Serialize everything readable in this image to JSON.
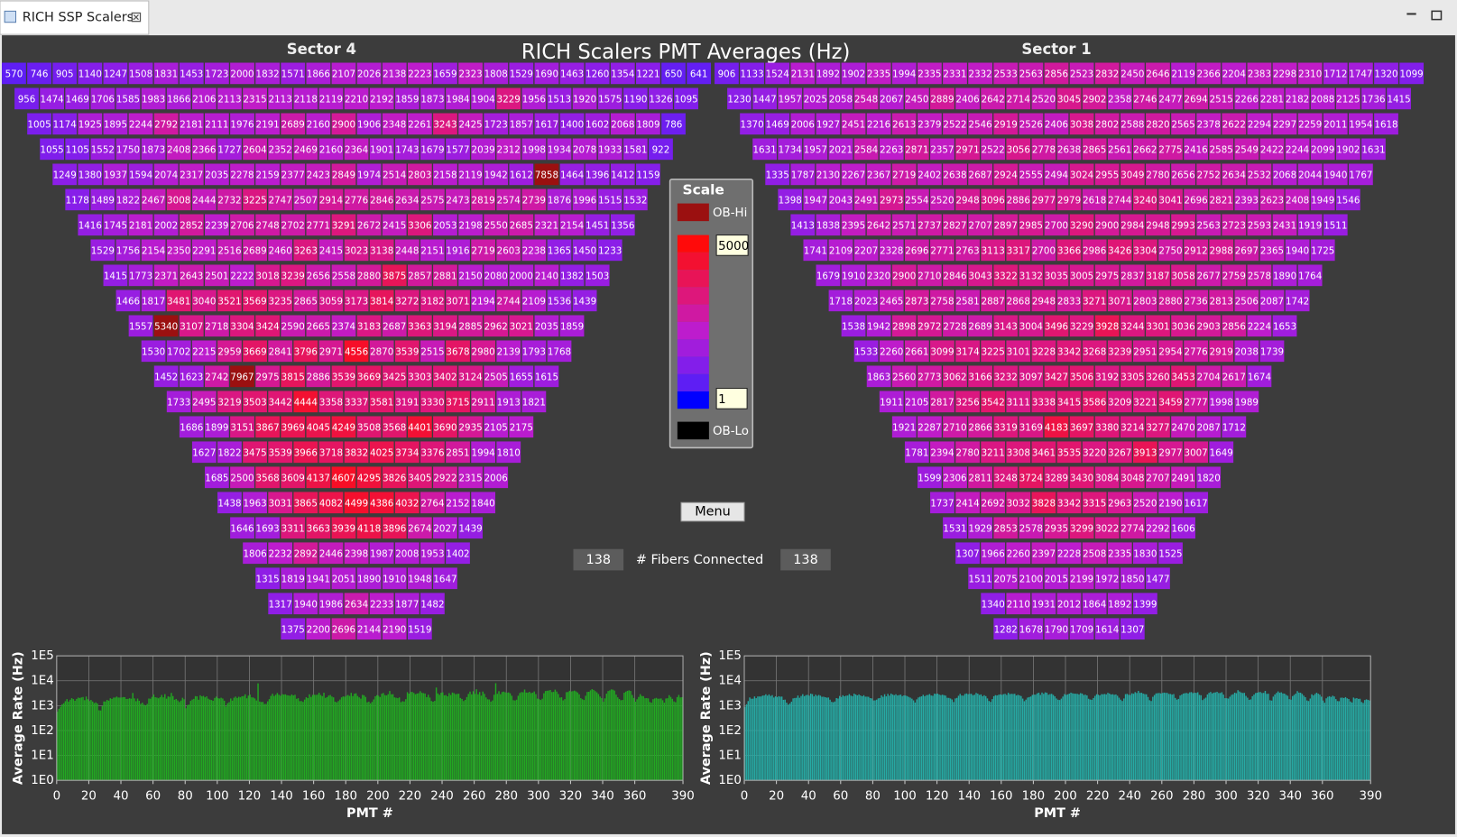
{
  "tab": {
    "title": "RICH SSP Scalers"
  },
  "title": "RICH Scalers PMT Averages (Hz)",
  "sectors": [
    {
      "name": "Sector 4",
      "rows": [
        [
          570,
          746,
          905,
          1140,
          1247,
          1508,
          1831,
          1453,
          1723,
          2000,
          1832,
          1571,
          1866,
          2107,
          2026,
          2138,
          2223,
          1659,
          2323,
          1808,
          1529,
          1690,
          1463,
          1260,
          1354,
          1221,
          650,
          641
        ],
        [
          956,
          1474,
          1469,
          1706,
          1585,
          1983,
          1866,
          2106,
          2113,
          2315,
          2113,
          2118,
          2119,
          2210,
          2192,
          1859,
          1873,
          1984,
          1904,
          3229,
          1956,
          1513,
          1920,
          1575,
          1190,
          1326,
          1095
        ],
        [
          1005,
          1174,
          1925,
          1895,
          2244,
          2792,
          2181,
          2111,
          1976,
          2191,
          2689,
          2160,
          2900,
          1906,
          2348,
          2261,
          3243,
          2425,
          1723,
          1857,
          1617,
          1400,
          1602,
          2068,
          1809,
          786
        ],
        [
          1055,
          1105,
          1552,
          1750,
          1873,
          2408,
          2366,
          1727,
          2604,
          2352,
          2469,
          2160,
          2364,
          1901,
          1743,
          1679,
          1577,
          2039,
          2312,
          1998,
          1934,
          2078,
          1933,
          1581,
          922
        ],
        [
          1249,
          1380,
          1937,
          1594,
          2074,
          2317,
          2035,
          2278,
          2159,
          2377,
          2423,
          2849,
          1974,
          2514,
          2803,
          2158,
          2119,
          1942,
          1612,
          7858,
          1464,
          1396,
          1412,
          1159
        ],
        [
          1178,
          1489,
          1822,
          2467,
          3008,
          2444,
          2732,
          3225,
          2747,
          2507,
          2914,
          2776,
          2846,
          2634,
          2575,
          2473,
          2819,
          2574,
          2739,
          1876,
          1996,
          1515,
          1532
        ],
        [
          1416,
          1745,
          2181,
          2002,
          2852,
          2239,
          2706,
          2748,
          2702,
          2771,
          3291,
          2672,
          2415,
          3306,
          2053,
          2198,
          2550,
          2685,
          2321,
          2154,
          1451,
          1356
        ],
        [
          1529,
          1756,
          2154,
          2350,
          2291,
          2516,
          2689,
          2460,
          3263,
          2415,
          3023,
          3138,
          2448,
          2151,
          1916,
          2719,
          2603,
          2238,
          1365,
          1450,
          1233
        ],
        [
          1415,
          1773,
          2371,
          2643,
          2501,
          2222,
          3018,
          3239,
          2656,
          2558,
          2880,
          3875,
          2857,
          2881,
          2150,
          2080,
          2000,
          2140,
          1382,
          1503
        ],
        [
          1466,
          1817,
          3481,
          3040,
          3521,
          3569,
          3235,
          2865,
          3059,
          3173,
          3814,
          3272,
          3182,
          3071,
          2194,
          2744,
          2109,
          1536,
          1439
        ],
        [
          1557,
          5340,
          3107,
          2718,
          3304,
          3424,
          2590,
          2665,
          2374,
          3183,
          2687,
          3363,
          3194,
          2885,
          2962,
          3021,
          2035,
          1859
        ],
        [
          1530,
          1702,
          2215,
          2959,
          3669,
          2841,
          3796,
          2971,
          4556,
          2870,
          3539,
          2515,
          3678,
          2980,
          2139,
          1793,
          1768
        ],
        [
          1452,
          1623,
          2742,
          7967,
          2975,
          3815,
          2886,
          3539,
          3669,
          3425,
          3303,
          3402,
          3124,
          2505,
          1655,
          1615
        ],
        [
          1733,
          2495,
          3219,
          3503,
          3442,
          4444,
          3358,
          3337,
          3581,
          3191,
          3330,
          3715,
          2911,
          1913,
          1821
        ],
        [
          1686,
          1899,
          3151,
          3867,
          3969,
          4045,
          4249,
          3508,
          3568,
          4401,
          3690,
          2935,
          2105,
          2175
        ],
        [
          1627,
          1822,
          3475,
          3539,
          3966,
          3718,
          3832,
          4025,
          3734,
          3376,
          2851,
          1994,
          1810
        ],
        [
          1685,
          2500,
          3568,
          3609,
          4137,
          4607,
          4295,
          3826,
          3405,
          2922,
          2315,
          2006
        ],
        [
          1438,
          1963,
          3031,
          3865,
          4082,
          4499,
          4386,
          4032,
          2764,
          2152,
          1840
        ],
        [
          1646,
          1693,
          3311,
          3663,
          3939,
          4118,
          3896,
          2674,
          2027,
          1439
        ],
        [
          1806,
          2232,
          2892,
          2446,
          2398,
          1987,
          2008,
          1953,
          1402
        ],
        [
          1315,
          1819,
          1941,
          2051,
          1890,
          1910,
          1948,
          1647
        ],
        [
          1317,
          1940,
          1986,
          2634,
          2233,
          1877,
          1482
        ],
        [
          1375,
          2200,
          2696,
          2144,
          2190,
          1519
        ]
      ]
    },
    {
      "name": "Sector 1",
      "rows": [
        [
          906,
          1133,
          1524,
          2131,
          1892,
          1902,
          2335,
          1994,
          2335,
          2331,
          2332,
          2533,
          2563,
          2856,
          2523,
          2832,
          2450,
          2646,
          2119,
          2366,
          2204,
          2383,
          2298,
          2310,
          1712,
          1747,
          1320,
          1099
        ],
        [
          1230,
          1447,
          1957,
          2025,
          2058,
          2548,
          2067,
          2450,
          2889,
          2406,
          2642,
          2714,
          2520,
          3045,
          2902,
          2358,
          2746,
          2477,
          2694,
          2515,
          2266,
          2281,
          2182,
          2088,
          2125,
          1736,
          1415
        ],
        [
          1370,
          1469,
          2006,
          1927,
          2451,
          2216,
          2613,
          2379,
          2522,
          2546,
          2919,
          2526,
          2406,
          3038,
          2802,
          2588,
          2820,
          2565,
          2378,
          2622,
          2294,
          2297,
          2259,
          2011,
          1954,
          1618
        ],
        [
          1631,
          1734,
          1957,
          2021,
          2584,
          2263,
          2871,
          2357,
          2971,
          2522,
          3056,
          2778,
          2638,
          2865,
          2561,
          2662,
          2775,
          2416,
          2585,
          2549,
          2422,
          2244,
          2099,
          1902,
          1631
        ],
        [
          1335,
          1787,
          2130,
          2267,
          2367,
          2719,
          2402,
          2638,
          2687,
          2924,
          2555,
          2494,
          3024,
          2955,
          3049,
          2780,
          2656,
          2752,
          2634,
          2532,
          2068,
          2044,
          1940,
          1767
        ],
        [
          1398,
          1947,
          2043,
          2491,
          2973,
          2554,
          2520,
          2948,
          3096,
          2886,
          2977,
          2979,
          2618,
          2744,
          3240,
          3041,
          2696,
          2821,
          2393,
          2623,
          2408,
          1949,
          1546
        ],
        [
          1413,
          1838,
          2395,
          2642,
          2571,
          2737,
          2827,
          2707,
          2897,
          2985,
          2700,
          3290,
          2900,
          2984,
          2948,
          2993,
          2563,
          2723,
          2593,
          2431,
          1919,
          1511
        ],
        [
          1741,
          2109,
          2207,
          2328,
          2696,
          2771,
          2763,
          3113,
          3317,
          2700,
          3366,
          2986,
          3426,
          3304,
          2750,
          2912,
          2988,
          2697,
          2365,
          1940,
          1725
        ],
        [
          1679,
          1910,
          2320,
          2900,
          2710,
          2846,
          3043,
          3322,
          3132,
          3035,
          3005,
          2975,
          2837,
          3187,
          3058,
          2677,
          2759,
          2578,
          1890,
          1764
        ],
        [
          1718,
          2023,
          2465,
          2873,
          2758,
          2581,
          2887,
          2868,
          2948,
          2833,
          3271,
          3071,
          2803,
          2880,
          2736,
          2813,
          2506,
          2087,
          1742
        ],
        [
          1538,
          1942,
          2898,
          2972,
          2728,
          2689,
          3143,
          3004,
          3496,
          3229,
          3928,
          3244,
          3301,
          3036,
          2903,
          2856,
          2224,
          1653
        ],
        [
          1533,
          2260,
          2661,
          3099,
          3174,
          3225,
          3101,
          3228,
          3342,
          3268,
          3239,
          2951,
          2954,
          2776,
          2919,
          2038,
          1739
        ],
        [
          1863,
          2560,
          2773,
          3062,
          3166,
          3232,
          3097,
          3427,
          3506,
          3192,
          3305,
          3260,
          3453,
          2704,
          2617,
          1674
        ],
        [
          1911,
          2105,
          2817,
          3256,
          3542,
          3111,
          3338,
          3415,
          3586,
          3209,
          3221,
          3459,
          2777,
          1998,
          1989
        ],
        [
          1921,
          2287,
          2710,
          2866,
          3319,
          3169,
          4183,
          3697,
          3380,
          3214,
          3277,
          2470,
          2087,
          1712
        ],
        [
          1781,
          2394,
          2780,
          3211,
          3308,
          3461,
          3535,
          3220,
          3267,
          3913,
          2977,
          3007,
          1649
        ],
        [
          1599,
          2306,
          2811,
          3248,
          3724,
          3289,
          3430,
          3084,
          3048,
          2707,
          2491,
          1820
        ],
        [
          1737,
          2414,
          2692,
          3032,
          3828,
          3342,
          3315,
          2963,
          2520,
          2190,
          1617
        ],
        [
          1531,
          1929,
          2853,
          2578,
          2935,
          3299,
          3022,
          2774,
          2292,
          1606
        ],
        [
          1307,
          1966,
          2260,
          2397,
          2228,
          2508,
          2335,
          1830,
          1525
        ],
        [
          1511,
          2075,
          2100,
          2015,
          2199,
          1972,
          1850,
          1477
        ],
        [
          1340,
          2110,
          1931,
          2012,
          1864,
          1892,
          1399
        ],
        [
          1282,
          1678,
          1790,
          1709,
          1614,
          1307
        ]
      ]
    }
  ],
  "scale": {
    "title": "Scale",
    "hi_label": "OB-Hi",
    "lo_label": "OB-Lo",
    "max": 5000,
    "min": 1
  },
  "menu": "Menu",
  "fibers": {
    "left": 138,
    "label": "# Fibers Connected",
    "right": 138
  },
  "chart_data": [
    {
      "type": "bar",
      "ylabel": "Average Rate (Hz)",
      "xlabel": "PMT #",
      "color": "#22a822",
      "log_scale": true,
      "grid": true,
      "ylim": [
        1,
        100000
      ],
      "yticks": [
        {
          "value": 1,
          "label": "1E0"
        },
        {
          "value": 10,
          "label": "1E1"
        },
        {
          "value": 100,
          "label": "1E2"
        },
        {
          "value": 1000,
          "label": "1E3"
        },
        {
          "value": 10000,
          "label": "1E4"
        },
        {
          "value": 100000,
          "label": "1E5"
        }
      ],
      "xlim": [
        0,
        390
      ],
      "xticks": [
        0,
        20,
        40,
        60,
        80,
        100,
        120,
        140,
        160,
        180,
        200,
        220,
        240,
        260,
        280,
        300,
        320,
        340,
        360,
        390
      ]
    },
    {
      "type": "bar",
      "ylabel": "Average Rate (Hz)",
      "xlabel": "PMT #",
      "color": "#26aaa4",
      "log_scale": true,
      "grid": true,
      "ylim": [
        1,
        100000
      ],
      "yticks": [
        {
          "value": 1,
          "label": "1E0"
        },
        {
          "value": 10,
          "label": "1E1"
        },
        {
          "value": 100,
          "label": "1E2"
        },
        {
          "value": 1000,
          "label": "1E3"
        },
        {
          "value": 10000,
          "label": "1E4"
        },
        {
          "value": 100000,
          "label": "1E5"
        }
      ],
      "xlim": [
        0,
        390
      ],
      "xticks": [
        0,
        20,
        40,
        60,
        80,
        100,
        120,
        140,
        160,
        180,
        200,
        220,
        240,
        260,
        280,
        300,
        320,
        340,
        360,
        390
      ]
    }
  ]
}
